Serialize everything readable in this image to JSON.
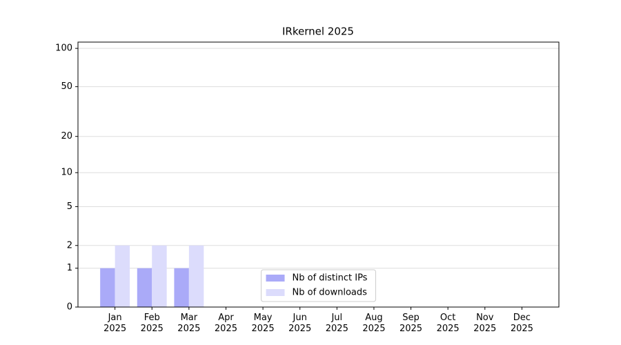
{
  "chart_data": {
    "type": "bar",
    "title": "IRkernel 2025",
    "categories": [
      "Jan\n2025",
      "Feb\n2025",
      "Mar\n2025",
      "Apr\n2025",
      "May\n2025",
      "Jun\n2025",
      "Jul\n2025",
      "Aug\n2025",
      "Sep\n2025",
      "Oct\n2025",
      "Nov\n2025",
      "Dec\n2025"
    ],
    "series": [
      {
        "name": "Nb of distinct IPs",
        "color": "#aaaaf8",
        "values": [
          1,
          1,
          1,
          0,
          0,
          0,
          0,
          0,
          0,
          0,
          0,
          0
        ]
      },
      {
        "name": "Nb of downloads",
        "color": "#dcdcfc",
        "values": [
          2,
          2,
          2,
          0,
          0,
          0,
          0,
          0,
          0,
          0,
          0,
          0
        ]
      }
    ],
    "y_scale": "log1p",
    "ylim": [
      0,
      112
    ],
    "yticks": [
      0,
      1,
      2,
      5,
      10,
      20,
      50,
      100
    ],
    "grid": true,
    "legend": "lower center"
  }
}
